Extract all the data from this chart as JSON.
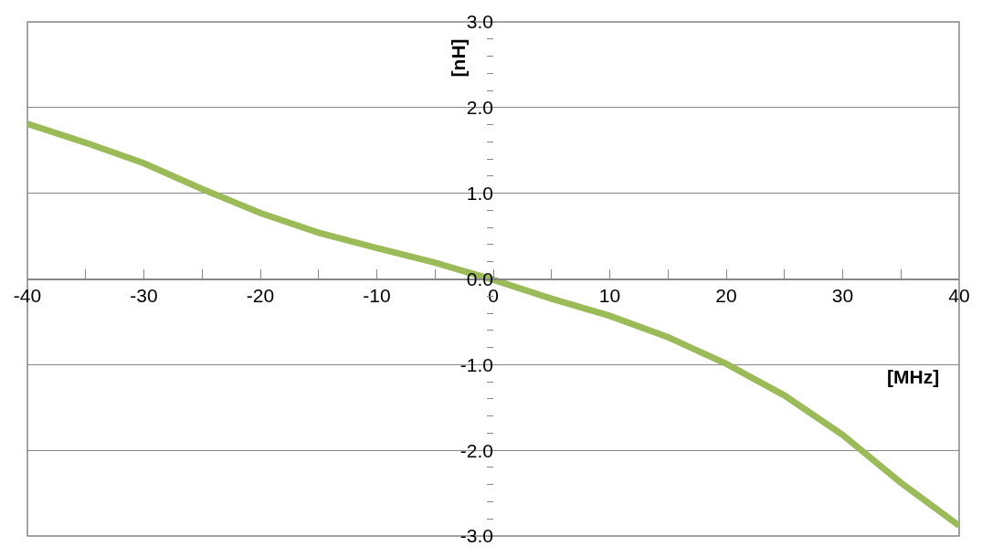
{
  "chart_data": {
    "type": "line",
    "xlabel": "[MHz]",
    "ylabel": "[nH]",
    "x": [
      -40,
      -35,
      -30,
      -25,
      -20,
      -15,
      -10,
      -5,
      0,
      5,
      10,
      15,
      20,
      25,
      30,
      35,
      40
    ],
    "series": [
      {
        "color": "#9bbb59",
        "values": [
          1.81,
          1.59,
          1.35,
          1.05,
          0.77,
          0.54,
          0.36,
          0.19,
          -0.01,
          -0.23,
          -0.43,
          -0.68,
          -0.99,
          -1.36,
          -1.82,
          -2.38,
          -2.88
        ]
      }
    ],
    "xlim": [
      -40,
      40
    ],
    "xticks": [
      -40,
      {
        "value": -35,
        "label": null
      },
      -30,
      {
        "value": -25,
        "label": null
      },
      -20,
      {
        "value": -15,
        "label": null
      },
      -10,
      {
        "value": -5,
        "label": null
      },
      0,
      {
        "value": 5,
        "label": null
      },
      10,
      {
        "value": 15,
        "label": null
      },
      20,
      {
        "value": 25,
        "label": null
      },
      30,
      {
        "value": 35,
        "label": null
      },
      40
    ],
    "ylim": [
      -3,
      3
    ],
    "yticks": [
      {
        "value": -3,
        "label": "-3.0"
      },
      {
        "value": -2,
        "label": "-2.0"
      },
      {
        "value": -1,
        "label": "-1.0"
      },
      {
        "value": 0,
        "label": "0.0"
      },
      {
        "value": 1,
        "label": "1.0"
      },
      {
        "value": 2,
        "label": "2.0"
      },
      {
        "value": 3,
        "label": "3.0"
      }
    ],
    "grid": "y",
    "marker": "none",
    "line_style": "solid"
  }
}
